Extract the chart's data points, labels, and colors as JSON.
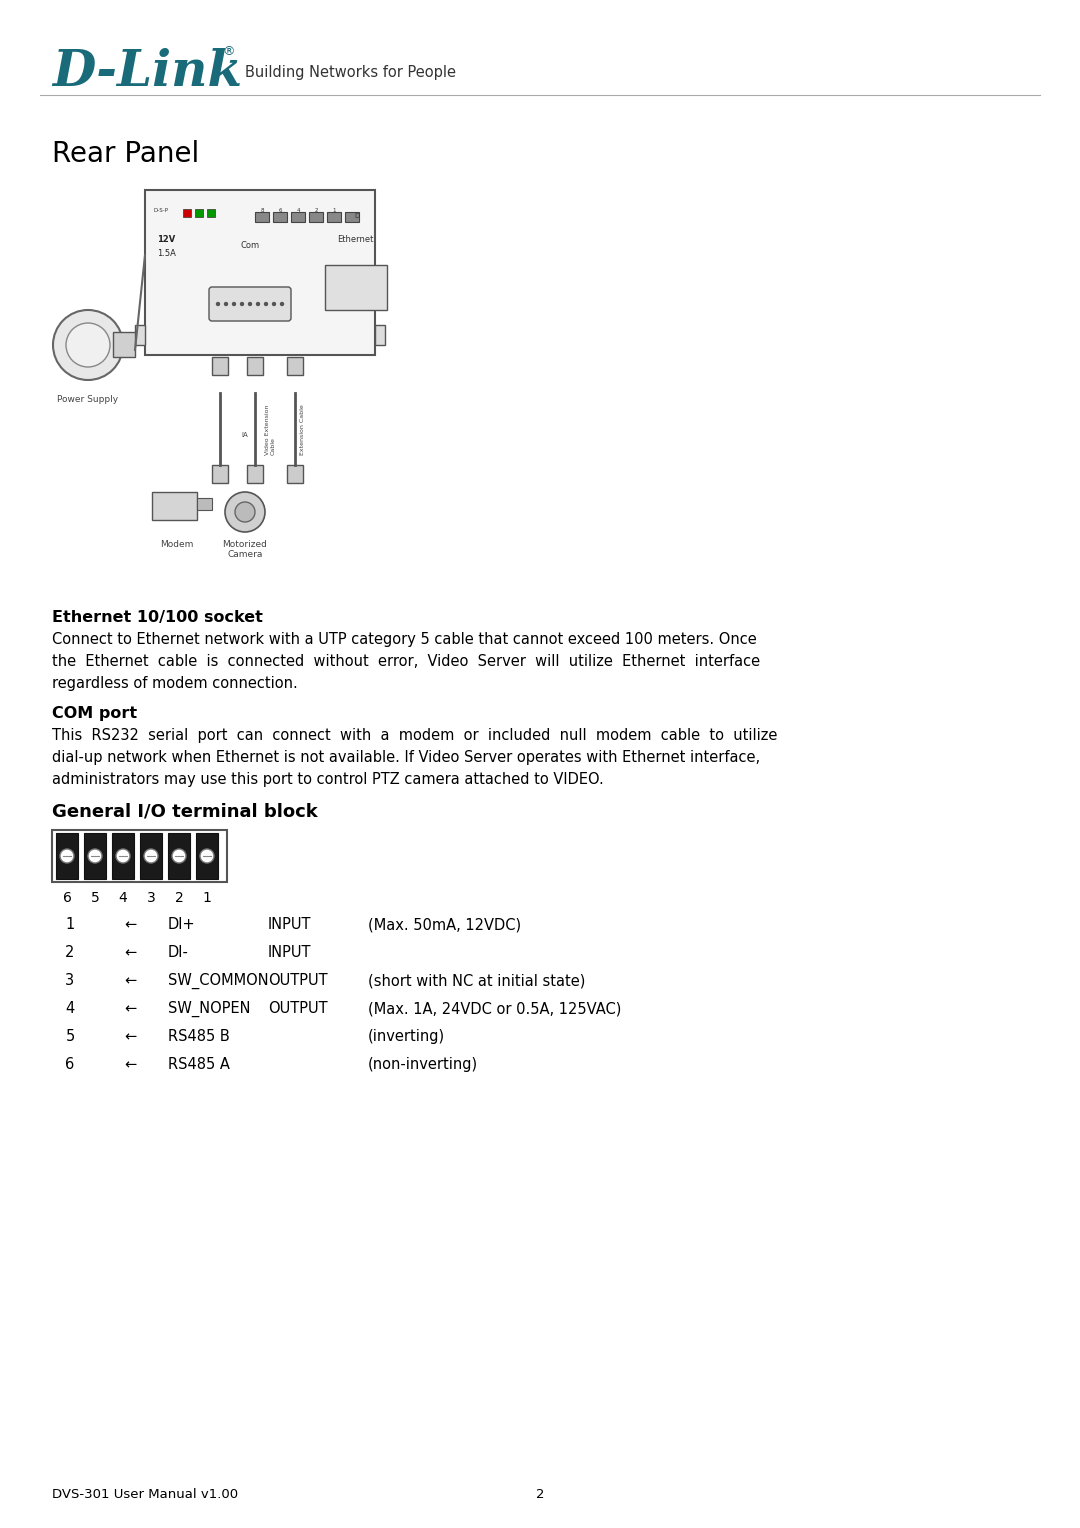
{
  "bg_color": "#ffffff",
  "dlink_color": "#1a6b7a",
  "title": "Rear Panel",
  "header_tagline": "Building Networks for People",
  "section1_title": "Ethernet 10/100 socket",
  "section1_line1": "Connect to Ethernet network with a UTP category 5 cable that cannot exceed 100 meters. Once",
  "section1_line2": "the  Ethernet  cable  is  connected  without  error,  Video  Server  will  utilize  Ethernet  interface",
  "section1_line3": "regardless of modem connection.",
  "section2_title": "COM port",
  "section2_line1": "This  RS232  serial  port  can  connect  with  a  modem  or  included  null  modem  cable  to  utilize",
  "section2_line2": "dial-up network when Ethernet is not available. If Video Server operates with Ethernet interface,",
  "section2_line3": "administrators may use this port to control PTZ camera attached to VIDEO.",
  "section3_title": "General I/O terminal block",
  "table_rows": [
    [
      "1",
      "←",
      "DI+",
      "INPUT",
      "(Max. 50mA, 12VDC)"
    ],
    [
      "2",
      "←",
      "DI-",
      "INPUT",
      ""
    ],
    [
      "3",
      "←",
      "SW_COMMON",
      "OUTPUT",
      "(short with NC at initial state)"
    ],
    [
      "4",
      "←",
      "SW_NOPEN",
      "OUTPUT",
      "(Max. 1A, 24VDC or 0.5A, 125VAC)"
    ],
    [
      "5",
      "←",
      "RS485 B",
      "",
      "(inverting)"
    ],
    [
      "6",
      "←",
      "RS485 A",
      "",
      "(non-inverting)"
    ]
  ],
  "footer_left": "DVS-301 User Manual v1.00",
  "footer_center": "2",
  "text_color": "#000000",
  "gray_text": "#555555",
  "body_font_size": 10.5,
  "title_font_size": 20,
  "section_title_font_size": 11.5,
  "table_font_size": 10.5,
  "header_font_size": 10.5
}
